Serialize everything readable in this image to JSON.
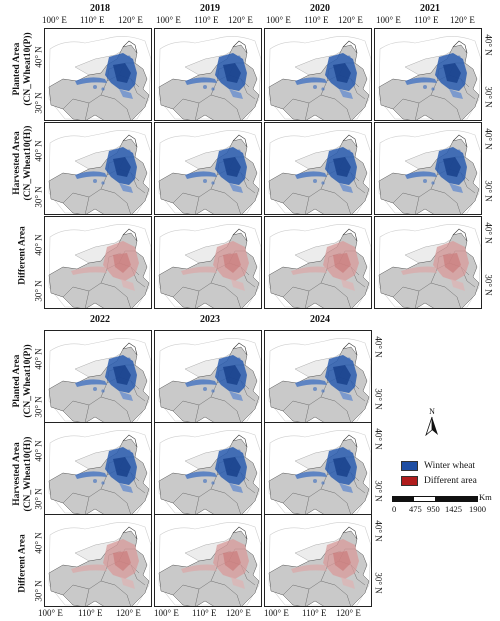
{
  "top_years": [
    "2018",
    "2019",
    "2020",
    "2021"
  ],
  "bottom_years": [
    "2022",
    "2023",
    "2024"
  ],
  "lon_ticks": [
    "100° E",
    "110° E",
    "120° E"
  ],
  "lat_ticks": [
    "40° N",
    "30° N"
  ],
  "row_labels": {
    "planted_line1": "Planted Area",
    "planted_line2": "(CN_Wheat10(P))",
    "harvested_line1": "Harvested Area",
    "harvested_line2": "(CN_Wheat10(H))",
    "different": "Different Area"
  },
  "legend": {
    "winter_wheat": "Winter wheat",
    "different_area": "Different area",
    "colors": {
      "winter_wheat": "#1f4ea3",
      "different_area": "#b01c1c"
    }
  },
  "north_label": "N",
  "scale": {
    "unit": "Km",
    "ticks": [
      "0",
      "475",
      "950",
      "1425",
      "1900"
    ]
  }
}
